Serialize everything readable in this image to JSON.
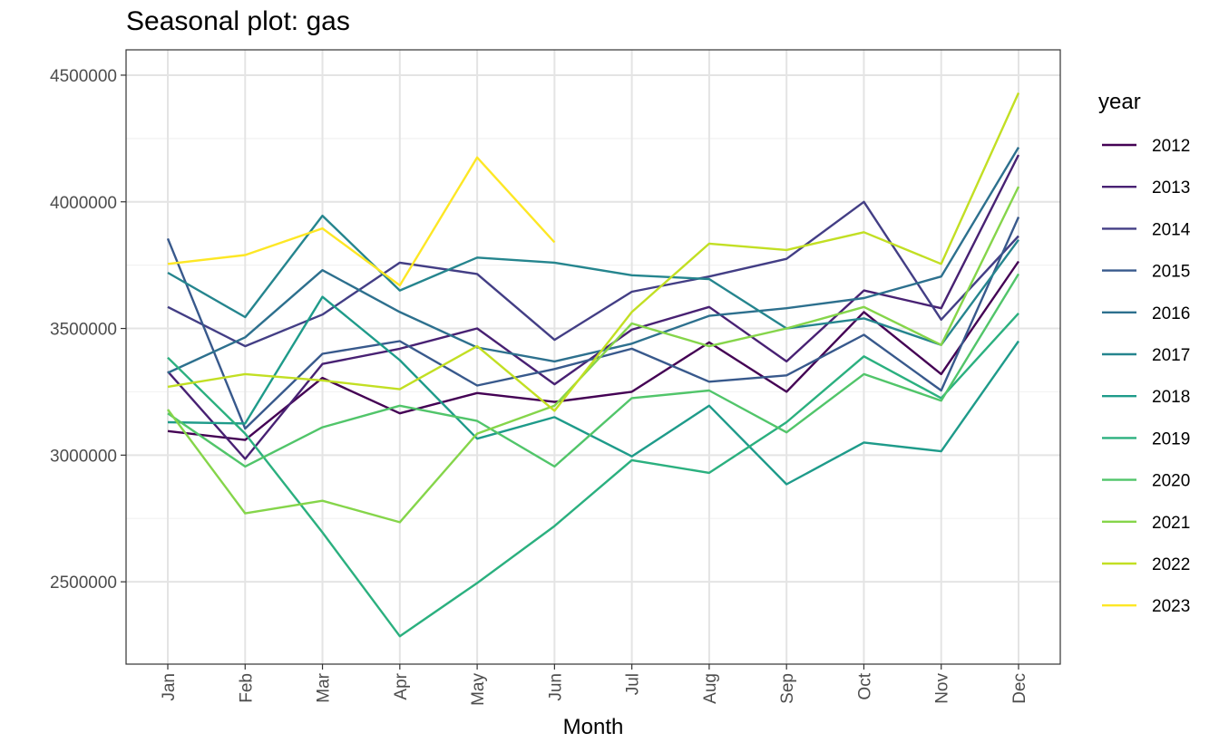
{
  "chart_data": {
    "type": "line",
    "title": "Seasonal plot: gas",
    "xlabel": "Month",
    "ylabel": "",
    "categories": [
      "Jan",
      "Feb",
      "Mar",
      "Apr",
      "May",
      "Jun",
      "Jul",
      "Aug",
      "Sep",
      "Oct",
      "Nov",
      "Dec"
    ],
    "ylim": [
      2175000,
      4600000
    ],
    "yticks": [
      2500000,
      3000000,
      3500000,
      4000000,
      4500000
    ],
    "ytick_labels": [
      "2500000",
      "3000000",
      "3500000",
      "4000000",
      "4500000"
    ],
    "grid": true,
    "legend": {
      "title": "year",
      "position": "right"
    },
    "series": [
      {
        "name": "2012",
        "color": "#440154",
        "values": [
          3095000,
          3060000,
          3305000,
          3165000,
          3245000,
          3210000,
          3250000,
          3445000,
          3250000,
          3565000,
          3320000,
          3765000
        ]
      },
      {
        "name": "2013",
        "color": "#482173",
        "values": [
          3330000,
          2985000,
          3360000,
          3420000,
          3500000,
          3280000,
          3495000,
          3585000,
          3370000,
          3650000,
          3580000,
          4185000
        ]
      },
      {
        "name": "2014",
        "color": "#433E85",
        "values": [
          3585000,
          3430000,
          3555000,
          3760000,
          3715000,
          3455000,
          3645000,
          3705000,
          3775000,
          4000000,
          3535000,
          3865000
        ]
      },
      {
        "name": "2015",
        "color": "#38598C",
        "values": [
          3855000,
          3105000,
          3400000,
          3450000,
          3275000,
          3340000,
          3420000,
          3290000,
          3315000,
          3475000,
          3255000,
          3940000
        ]
      },
      {
        "name": "2016",
        "color": "#2D708E",
        "values": [
          3325000,
          3465000,
          3730000,
          3565000,
          3425000,
          3370000,
          3440000,
          3550000,
          3580000,
          3620000,
          3705000,
          4215000
        ]
      },
      {
        "name": "2017",
        "color": "#25858E",
        "values": [
          3720000,
          3545000,
          3945000,
          3650000,
          3780000,
          3760000,
          3710000,
          3695000,
          3500000,
          3540000,
          3435000,
          3850000
        ]
      },
      {
        "name": "2018",
        "color": "#1E9B8A",
        "values": [
          3130000,
          3125000,
          3625000,
          3375000,
          3065000,
          3150000,
          2995000,
          3195000,
          2885000,
          3050000,
          3015000,
          3450000
        ]
      },
      {
        "name": "2019",
        "color": "#2BB07F",
        "values": [
          3385000,
          3085000,
          2695000,
          2285000,
          2495000,
          2720000,
          2980000,
          2930000,
          3130000,
          3390000,
          3225000,
          3560000
        ]
      },
      {
        "name": "2020",
        "color": "#51C56A",
        "values": [
          3165000,
          2955000,
          3110000,
          3195000,
          3135000,
          2955000,
          3225000,
          3255000,
          3090000,
          3320000,
          3215000,
          3715000
        ]
      },
      {
        "name": "2021",
        "color": "#85D54A",
        "values": [
          3180000,
          2770000,
          2820000,
          2735000,
          3085000,
          3195000,
          3520000,
          3430000,
          3500000,
          3585000,
          3435000,
          4060000
        ]
      },
      {
        "name": "2022",
        "color": "#C2DF23",
        "values": [
          3270000,
          3320000,
          3295000,
          3260000,
          3430000,
          3175000,
          3565000,
          3835000,
          3810000,
          3880000,
          3755000,
          4430000
        ]
      },
      {
        "name": "2023",
        "color": "#FDE725",
        "values": [
          3755000,
          3790000,
          3895000,
          3670000,
          4175000,
          3840000,
          null,
          null,
          null,
          null,
          null,
          null
        ]
      }
    ]
  }
}
